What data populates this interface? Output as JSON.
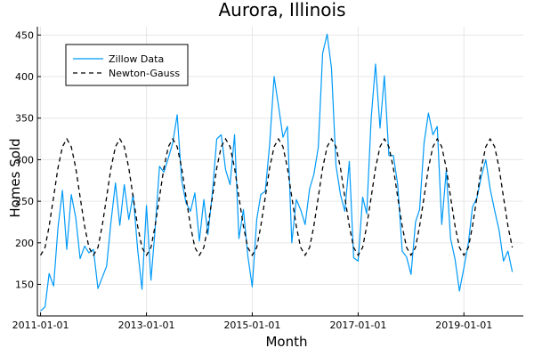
{
  "chart_data": {
    "type": "line",
    "title": "Aurora, Illinois",
    "xlabel": "Month",
    "ylabel": "Homes Sold",
    "xlim": [
      "2010-12-10",
      "2020-02-15"
    ],
    "ylim": [
      112,
      460
    ],
    "x_ticks": [
      "2011-01-01",
      "2013-01-01",
      "2015-01-01",
      "2017-01-01",
      "2019-01-01"
    ],
    "y_ticks": [
      150,
      200,
      250,
      300,
      350,
      400,
      450
    ],
    "grid": true,
    "legend_position": "top-left",
    "series": [
      {
        "name": "Zillow Data",
        "color": "#009af9",
        "style": "solid",
        "x_start": "2011-01-01",
        "frequency": "monthly",
        "values": [
          118,
          123,
          163,
          148,
          218,
          263,
          192,
          258,
          230,
          181,
          196,
          188,
          192,
          145,
          158,
          172,
          225,
          272,
          221,
          270,
          228,
          258,
          192,
          144,
          245,
          155,
          215,
          292,
          285,
          302,
          320,
          354,
          275,
          248,
          238,
          260,
          202,
          252,
          210,
          260,
          325,
          330,
          288,
          270,
          330,
          205,
          240,
          185,
          147,
          228,
          258,
          262,
          318,
          400,
          365,
          327,
          340,
          200,
          252,
          240,
          222,
          265,
          282,
          315,
          428,
          451,
          410,
          293,
          258,
          238,
          298,
          182,
          178,
          255,
          235,
          350,
          415,
          338,
          401,
          305,
          305,
          270,
          190,
          183,
          162,
          225,
          240,
          320,
          356,
          330,
          340,
          222,
          287,
          205,
          180,
          142,
          170,
          200,
          243,
          254,
          280,
          300,
          265,
          239,
          215,
          178,
          190,
          165
        ]
      },
      {
        "name": "Newton-Gauss",
        "color": "#000000",
        "style": "dashed",
        "x_start": "2011-01-01",
        "frequency": "monthly",
        "amplitude": 70,
        "baseline": 255,
        "period_months": 12,
        "peak_month": "July"
      }
    ]
  }
}
